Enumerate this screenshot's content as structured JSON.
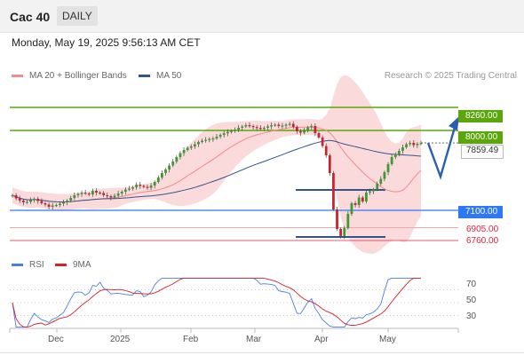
{
  "header": {
    "title": "Cac 40",
    "period_button": "DAILY"
  },
  "timestamp": "Monday, May 19, 2025 9:56:13 AM CET",
  "legend": {
    "ma20_label": "MA 20 + Bollinger Bands",
    "ma50_label": "MA 50",
    "source": "Research © 2025 Trading Central",
    "rsi_label": "RSI",
    "rsi_ma_label": "9MA"
  },
  "colors": {
    "ma20": "#f28b8b",
    "ma50": "#34558b",
    "band": "#fad4d6",
    "resistance": "#5aa60b",
    "pivot": "#2f78f5",
    "support": "#e0223b",
    "rsi": "#4a7de8",
    "rsi_ma": "#d6202a",
    "up": "#3d9a2d",
    "down": "#c8242f"
  },
  "levels": [
    {
      "label": "8260.00",
      "value": 8260,
      "kind": "resistance"
    },
    {
      "label": "8000.00",
      "value": 8000,
      "kind": "resistance"
    },
    {
      "label": "7859.49",
      "value": 7859.49,
      "kind": "last"
    },
    {
      "label": "7100.00",
      "value": 7100,
      "kind": "pivot"
    },
    {
      "label": "6905.00",
      "value": 6905,
      "kind": "support"
    },
    {
      "label": "6760.00",
      "value": 6760,
      "kind": "support"
    }
  ],
  "rsi_levels": [
    "70",
    "50",
    "30"
  ],
  "x_axis_labels": [
    "Dec",
    "2025",
    "Feb",
    "Mar",
    "Apr",
    "May"
  ],
  "chart_data": {
    "type": "candlestick",
    "instrument": "Cac 40",
    "interval": "DAILY",
    "price_range": [
      6710,
      8350
    ],
    "candles_close": [
      7270,
      7235,
      7210,
      7190,
      7195,
      7215,
      7230,
      7205,
      7180,
      7165,
      7140,
      7155,
      7160,
      7175,
      7190,
      7210,
      7240,
      7270,
      7285,
      7300,
      7290,
      7280,
      7320,
      7300,
      7295,
      7270,
      7260,
      7245,
      7265,
      7290,
      7310,
      7335,
      7345,
      7360,
      7390,
      7375,
      7365,
      7355,
      7380,
      7420,
      7470,
      7520,
      7560,
      7605,
      7650,
      7700,
      7745,
      7780,
      7805,
      7820,
      7845,
      7870,
      7885,
      7895,
      7905,
      7910,
      7930,
      7950,
      7968,
      7983,
      7995,
      8010,
      8030,
      8045,
      8060,
      8050,
      8038,
      8030,
      8018,
      8030,
      8045,
      8060,
      8065,
      8050,
      8055,
      8065,
      8075,
      8040,
      7990,
      7975,
      8000,
      8035,
      8050,
      7970,
      7920,
      7825,
      7720,
      7520,
      7110,
      6890,
      6810,
      6900,
      7060,
      7180,
      7160,
      7245,
      7200,
      7300,
      7315,
      7335,
      7400,
      7455,
      7530,
      7620,
      7700,
      7735,
      7770,
      7810,
      7845,
      7860,
      7835,
      7850,
      7859
    ],
    "price_axis_labels": [
      "8260.00",
      "8000.00",
      "7859.49",
      "7100.00",
      "6905.00",
      "6760.00"
    ],
    "rsi": {
      "levels": [
        70,
        50,
        30
      ]
    },
    "x_labels": [
      "Dec",
      "2025",
      "Feb",
      "Mar",
      "Apr",
      "May"
    ],
    "legend": [
      "MA 20 + Bollinger Bands",
      "MA 50",
      "RSI",
      "9MA"
    ]
  }
}
